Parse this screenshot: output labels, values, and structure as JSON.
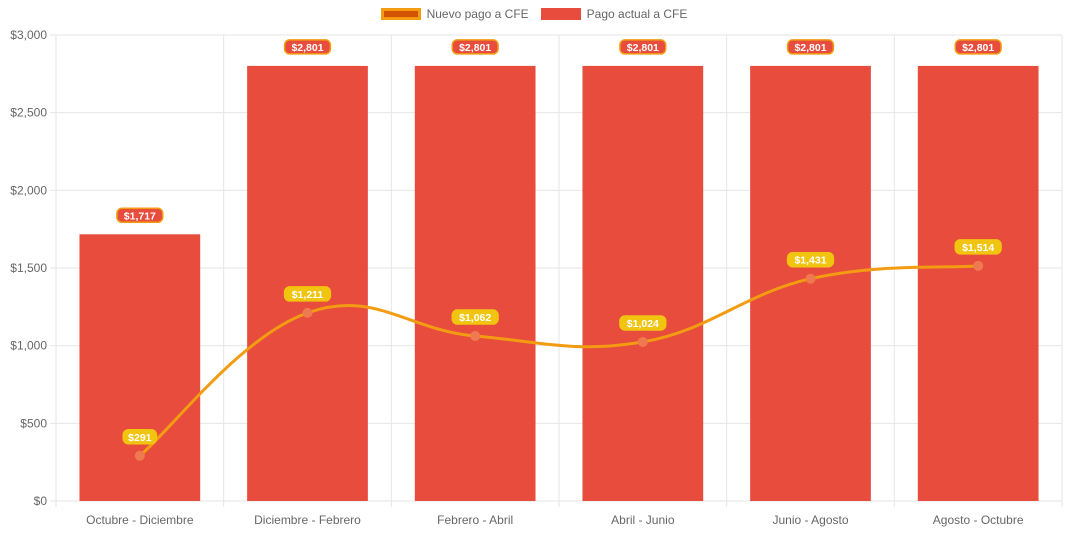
{
  "legend": {
    "line_label": "Nuevo pago a CFE",
    "bar_label": "Pago actual a CFE"
  },
  "colors": {
    "bar": "#e74c3c",
    "line": "#f39c12",
    "point": "#f07a4f",
    "bar_label_bg": "#e74c3c",
    "bar_label_border": "#f39c12",
    "line_label_bg": "#f1c40f",
    "grid": "#e6e6e6",
    "tick": "#666666"
  },
  "chart_data": {
    "type": "bar",
    "title": "",
    "xlabel": "",
    "ylabel": "",
    "categories": [
      "Octubre - Diciembre",
      "Diciembre - Febrero",
      "Febrero - Abril",
      "Abril - Junio",
      "Junio - Agosto",
      "Agosto - Octubre"
    ],
    "ylim": [
      0,
      3000
    ],
    "y_ticks": [
      "$0",
      "$500",
      "$1,000",
      "$1,500",
      "$2,000",
      "$2,500",
      "$3,000"
    ],
    "grid": true,
    "legend_position": "top",
    "series": [
      {
        "name": "Pago actual a CFE",
        "type": "bar",
        "values": [
          1717,
          2801,
          2801,
          2801,
          2801,
          2801
        ],
        "labels": [
          "$1,717",
          "$2,801",
          "$2,801",
          "$2,801",
          "$2,801",
          "$2,801"
        ]
      },
      {
        "name": "Nuevo pago a CFE",
        "type": "line",
        "values": [
          291,
          1211,
          1062,
          1024,
          1431,
          1514
        ],
        "labels": [
          "$291",
          "$1,211",
          "$1,062",
          "$1,024",
          "$1,431",
          "$1,514"
        ]
      }
    ]
  }
}
